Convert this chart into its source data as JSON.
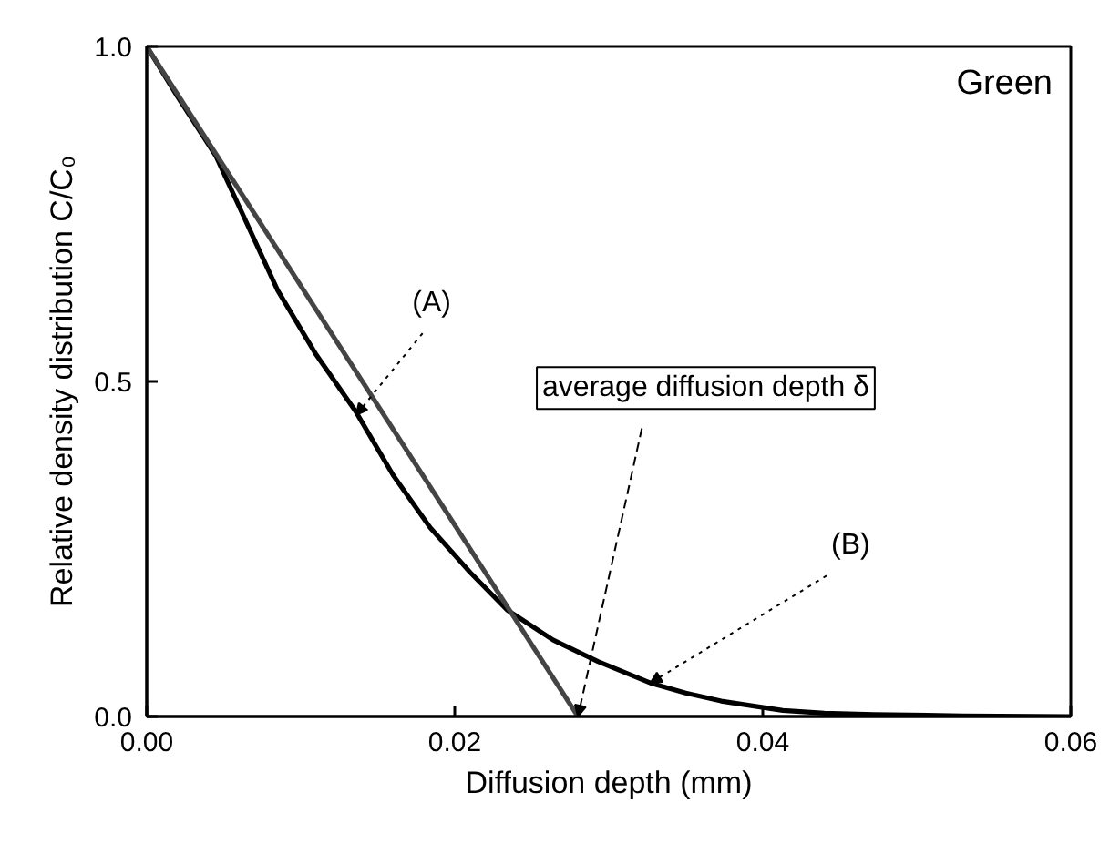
{
  "chart_data": {
    "type": "line",
    "xlabel": "Diffusion depth (mm)",
    "ylabel": "Relative density distribution C/C₀",
    "series": [
      {
        "color": "#000000",
        "x": [
          0,
          0.002,
          0.0045,
          0.0085,
          0.011,
          0.0136,
          0.016,
          0.0184,
          0.021,
          0.0234,
          0.0264,
          0.0293,
          0.0327,
          0.035,
          0.0373,
          0.0413,
          0.044,
          0.0472,
          0.053,
          0.06
        ],
        "values": [
          1.0,
          0.925,
          0.836,
          0.636,
          0.54,
          0.454,
          0.36,
          0.282,
          0.215,
          0.159,
          0.114,
          0.082,
          0.05,
          0.035,
          0.023,
          0.009,
          0.005,
          0.003,
          0.001,
          0.0
        ]
      },
      {
        "color": "#444444",
        "x": [
          0,
          0.028
        ],
        "values": [
          1.0,
          0.0
        ]
      }
    ],
    "annotations": [
      {
        "text": "(A)",
        "x": 0.0136,
        "y": 0.45
      },
      {
        "text": "average diffusion depth δ",
        "x": 0.028,
        "y": 0.0
      },
      {
        "text": "(B)",
        "x": 0.0327,
        "y": 0.05
      },
      "Green"
    ],
    "xlim": [
      0,
      0.06
    ],
    "ylim": [
      0,
      1.0
    ],
    "xticks": [
      {
        "value": 0,
        "label": "0.00"
      },
      {
        "value": 0.02,
        "label": "0.02"
      },
      {
        "value": 0.04,
        "label": "0.04"
      },
      {
        "value": 0.06,
        "label": "0.06"
      }
    ],
    "yticks": [
      {
        "value": 0,
        "label": "0.0"
      },
      {
        "value": 0.5,
        "label": "0.5"
      },
      {
        "value": 1.0,
        "label": "1.0"
      }
    ],
    "grid": false,
    "marker": "none",
    "line_style": "solid"
  }
}
